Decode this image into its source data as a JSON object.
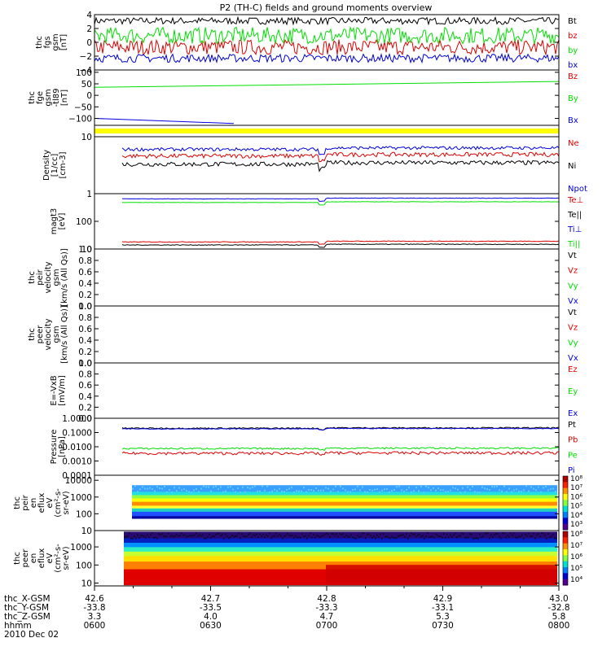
{
  "title": "P2 (TH-C) fields and ground moments overview",
  "colors": {
    "black": "#000000",
    "red": "#e00000",
    "green": "#00e000",
    "blue": "#0000e0",
    "yellow": "#ffff00"
  },
  "footer": {
    "rows": [
      {
        "label": "thc_X-GSM",
        "values": [
          "42.6",
          "42.7",
          "42.8",
          "42.9",
          "43.0"
        ]
      },
      {
        "label": "thc_Y-GSM",
        "values": [
          "-33.8",
          "-33.5",
          "-33.3",
          "-33.1",
          "-32.8"
        ]
      },
      {
        "label": "thc_Z-GSM",
        "values": [
          "3.3",
          "4.0",
          "4.7",
          "5.3",
          "5.8"
        ]
      },
      {
        "label": "hhmm",
        "values": [
          "0600",
          "0630",
          "0700",
          "0730",
          "0800"
        ]
      }
    ],
    "date": "2010 Dec 02"
  },
  "chart_data": [
    {
      "type": "line",
      "ylabel_lines": [
        "thc",
        "fgs",
        "gsm",
        "[nT]"
      ],
      "ylim": [
        -4,
        4
      ],
      "yticks": [
        "4",
        "2",
        "0",
        "−2",
        "−4"
      ],
      "x_range": [
        "0600",
        "0800"
      ],
      "series": [
        {
          "name": "Bt",
          "color": "black",
          "mean": 3.1,
          "amplitude": 0.5
        },
        {
          "name": "bz",
          "color": "red",
          "mean": -0.7,
          "amplitude": 1.1
        },
        {
          "name": "by",
          "color": "green",
          "mean": 1.0,
          "amplitude": 1.2
        },
        {
          "name": "bx",
          "color": "blue",
          "mean": -2.3,
          "amplitude": 0.6
        }
      ]
    },
    {
      "type": "line",
      "ylabel_lines": [
        "thc",
        "fge",
        "gsm",
        "-tl89",
        "[nT]"
      ],
      "ylim": [
        -130,
        110
      ],
      "yticks": [
        "100",
        "50",
        "0",
        "−50",
        "−100"
      ],
      "series": [
        {
          "name": "Bz",
          "color": "red",
          "points": [
            [
              0.57,
              110
            ],
            [
              1.0,
              110
            ]
          ]
        },
        {
          "name": "By",
          "color": "green",
          "points": [
            [
              0.0,
              35
            ],
            [
              1.0,
              60
            ]
          ]
        },
        {
          "name": "Bx",
          "color": "blue",
          "points": [
            [
              0.0,
              -100
            ],
            [
              0.3,
              -122
            ]
          ]
        }
      ]
    },
    {
      "type": "bar",
      "ylabel_lines": [],
      "series": [
        {
          "name": "",
          "color": "yellow"
        }
      ]
    },
    {
      "type": "line",
      "scale": "log",
      "ylabel_lines": [
        "Density",
        "[1/cc]",
        "[cm-3]"
      ],
      "ylim": [
        1,
        10
      ],
      "yticks": [
        "10",
        "1"
      ],
      "series": [
        {
          "name": "Ne",
          "color": "red",
          "mean": 4.6,
          "amplitude": 0.4
        },
        {
          "name": "Ni",
          "color": "black",
          "mean": 3.3,
          "amplitude": 0.3
        },
        {
          "name": "Npot",
          "color": "blue",
          "mean": 6.0,
          "amplitude": 0.4
        }
      ]
    },
    {
      "type": "line",
      "scale": "log",
      "ylabel_lines": [
        "magt3",
        "[eV]"
      ],
      "ylim": [
        10,
        1000
      ],
      "yticks": [
        "100",
        "10"
      ],
      "series": [
        {
          "name": "Te⊥",
          "color": "red",
          "mean": 18,
          "amplitude": 0.5
        },
        {
          "name": "Te||",
          "color": "black",
          "mean": 14,
          "amplitude": 0.4
        },
        {
          "name": "Ti⊥",
          "color": "blue",
          "mean": 650,
          "amplitude": 10
        },
        {
          "name": "Ti||",
          "color": "green",
          "mean": 480,
          "amplitude": 6
        }
      ]
    },
    {
      "type": "line",
      "ylabel_lines": [
        "thc",
        "peir",
        "velocity",
        "gsm",
        "[km/s (All Qs)]"
      ],
      "ylim": [
        0,
        1
      ],
      "yticks": [
        "1.0",
        "0.8",
        "0.6",
        "0.4",
        "0.2",
        "0.0"
      ],
      "series": [
        {
          "name": "Vt",
          "color": "black"
        },
        {
          "name": "Vz",
          "color": "red"
        },
        {
          "name": "Vy",
          "color": "green"
        },
        {
          "name": "Vx",
          "color": "blue"
        }
      ]
    },
    {
      "type": "line",
      "ylabel_lines": [
        "thc",
        "peer",
        "velocity",
        "gsm",
        "[km/s (All Qs)]"
      ],
      "ylim": [
        0,
        1
      ],
      "yticks": [
        "1.0",
        "0.8",
        "0.6",
        "0.4",
        "0.2",
        "0.0"
      ],
      "series": [
        {
          "name": "Vt",
          "color": "black"
        },
        {
          "name": "Vz",
          "color": "red"
        },
        {
          "name": "Vy",
          "color": "green"
        },
        {
          "name": "Vx",
          "color": "blue"
        }
      ]
    },
    {
      "type": "line",
      "ylabel_lines": [
        "E=-VxB",
        "[mV/m]"
      ],
      "ylim": [
        0,
        1
      ],
      "yticks": [
        "1.0",
        "0.8",
        "0.6",
        "0.4",
        "0.2",
        "0.0"
      ],
      "series": [
        {
          "name": "Ez",
          "color": "red"
        },
        {
          "name": "Ey",
          "color": "green"
        },
        {
          "name": "Ex",
          "color": "blue"
        }
      ]
    },
    {
      "type": "line",
      "scale": "log",
      "ylabel_lines": [
        "Pressure",
        "[nPa]"
      ],
      "ylim": [
        0.0001,
        1
      ],
      "yticks": [
        "1.0000",
        "0.1000",
        "0.0100",
        "0.0010",
        "0.0001"
      ],
      "series": [
        {
          "name": "Pt",
          "color": "black",
          "mean": 0.2,
          "amplitude": 0.02
        },
        {
          "name": "Pb",
          "color": "red",
          "mean": 0.0035,
          "amplitude": 0.0008
        },
        {
          "name": "Pe",
          "color": "green",
          "mean": 0.0075,
          "amplitude": 0.001
        },
        {
          "name": "Pi",
          "color": "blue",
          "mean": 0.18,
          "amplitude": 0.01
        }
      ]
    },
    {
      "type": "heatmap",
      "scale": "log",
      "ylabel_lines": [
        "thc",
        "peir",
        "en",
        "eflux",
        "eV",
        "(cm²-s-",
        "sr-eV)"
      ],
      "ylim": [
        10,
        20000
      ],
      "yticks": [
        "10000",
        "1000",
        "100",
        "10"
      ],
      "colorbar_ticks": [
        "10⁸",
        "10⁷",
        "10⁶",
        "10⁵",
        "10⁴",
        "10³"
      ]
    },
    {
      "type": "heatmap",
      "scale": "log",
      "ylabel_lines": [
        "thc",
        "peer",
        "en",
        "eflux",
        "eV",
        "(cm²-s-",
        "sr-eV)"
      ],
      "ylim": [
        7,
        8000
      ],
      "yticks": [
        "1000",
        "100",
        "10"
      ],
      "colorbar_ticks": [
        "10⁸",
        "10⁷",
        "10⁶",
        "10⁵",
        "10⁴"
      ]
    }
  ]
}
